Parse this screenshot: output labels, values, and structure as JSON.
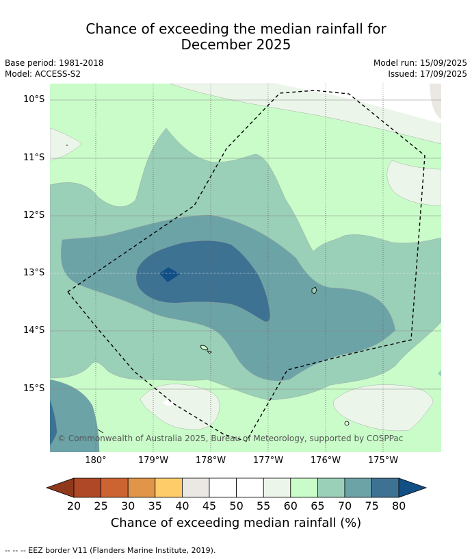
{
  "title": {
    "line1": "Chance of exceeding the median rainfall for",
    "line2": "December 2025"
  },
  "meta": {
    "base_period": "Base period: 1981-2018",
    "model": "Model: ACCESS-S2",
    "model_run": "Model run: 15/09/2025",
    "issued": "Issued: 17/09/2025"
  },
  "map": {
    "lat_labels": [
      "10°S",
      "11°S",
      "12°S",
      "13°S",
      "14°S",
      "15°S"
    ],
    "lon_labels": [
      "180°",
      "179°W",
      "178°W",
      "177°W",
      "176°W",
      "175°W"
    ],
    "copyright": "© Commonwealth of Australia 2025, Bureau of Meteorology, supported by COSPPac",
    "colors": {
      "c55_60": "#ecf5ea",
      "c60_65": "#c9fcc9",
      "c65_70": "#9acfb8",
      "c70_75": "#6ca3a7",
      "c75_80": "#3e7293",
      "c80plus": "#124f85",
      "c40_45": "#ebe8e4"
    }
  },
  "colorbar": {
    "ticks": [
      "20",
      "25",
      "30",
      "35",
      "40",
      "45",
      "50",
      "55",
      "60",
      "65",
      "70",
      "75",
      "80"
    ],
    "colors": [
      "#ae4827",
      "#cc6432",
      "#e19549",
      "#fecd6a",
      "#ebe8e4",
      "#ffffff",
      "#ffffff",
      "#ecf5ea",
      "#c9fcc9",
      "#9acfb8",
      "#6ca3a7",
      "#3e7293"
    ],
    "low_color": "#90381c",
    "high_color": "#124f85",
    "label": "Chance of exceeding median rainfall (%)"
  },
  "footnote": "--  --  -- EEZ border V11 (Flanders Marine Institute, 2019)."
}
